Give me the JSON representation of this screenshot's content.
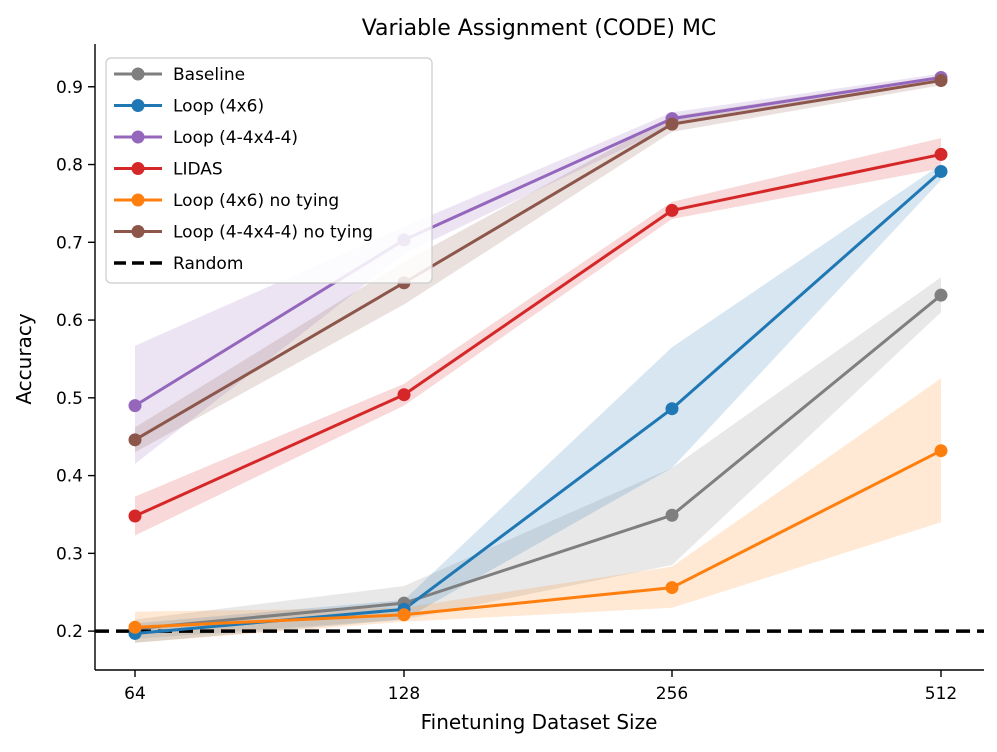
{
  "chart_data": {
    "type": "line",
    "title": "Variable Assignment (CODE) MC",
    "xlabel": "Finetuning Dataset Size",
    "ylabel": "Accuracy",
    "categories": [
      "64",
      "128",
      "256",
      "512"
    ],
    "yticks": [
      "0.2",
      "0.3",
      "0.4",
      "0.5",
      "0.6",
      "0.7",
      "0.8",
      "0.9"
    ],
    "ylim": [
      0.15,
      0.955
    ],
    "legend_position": "top-left",
    "grid": false,
    "series": [
      {
        "name": "Baseline",
        "color": "#7f7f7f",
        "values": [
          0.203,
          0.236,
          0.349,
          0.632
        ],
        "lower": [
          0.19,
          0.215,
          0.285,
          0.61
        ],
        "upper": [
          0.215,
          0.258,
          0.41,
          0.655
        ]
      },
      {
        "name": "Loop (4x6)",
        "color": "#1f77b4",
        "values": [
          0.197,
          0.228,
          0.486,
          0.791
        ],
        "lower": [
          0.185,
          0.215,
          0.41,
          0.78
        ],
        "upper": [
          0.21,
          0.24,
          0.565,
          0.8
        ]
      },
      {
        "name": "Loop (4-4x4-4)",
        "color": "#9467bd",
        "values": [
          0.49,
          0.703,
          0.859,
          0.912
        ],
        "lower": [
          0.415,
          0.685,
          0.85,
          0.907
        ],
        "upper": [
          0.567,
          0.72,
          0.867,
          0.917
        ]
      },
      {
        "name": "LIDAS",
        "color": "#d62728",
        "values": [
          0.348,
          0.504,
          0.741,
          0.813
        ],
        "lower": [
          0.323,
          0.49,
          0.73,
          0.795
        ],
        "upper": [
          0.373,
          0.518,
          0.752,
          0.834
        ]
      },
      {
        "name": "Loop (4x6) no tying",
        "color": "#ff7f0e",
        "values": [
          0.205,
          0.221,
          0.256,
          0.432
        ],
        "lower": [
          0.185,
          0.212,
          0.23,
          0.34
        ],
        "upper": [
          0.225,
          0.23,
          0.283,
          0.525
        ]
      },
      {
        "name": "Loop (4-4x4-4) no tying",
        "color": "#8c564b",
        "values": [
          0.446,
          0.648,
          0.852,
          0.908
        ],
        "lower": [
          0.43,
          0.62,
          0.842,
          0.902
        ],
        "upper": [
          0.462,
          0.675,
          0.862,
          0.914
        ]
      }
    ],
    "reference_lines": [
      {
        "name": "Random",
        "value": 0.2,
        "color": "#000000",
        "style": "dashed"
      }
    ]
  }
}
